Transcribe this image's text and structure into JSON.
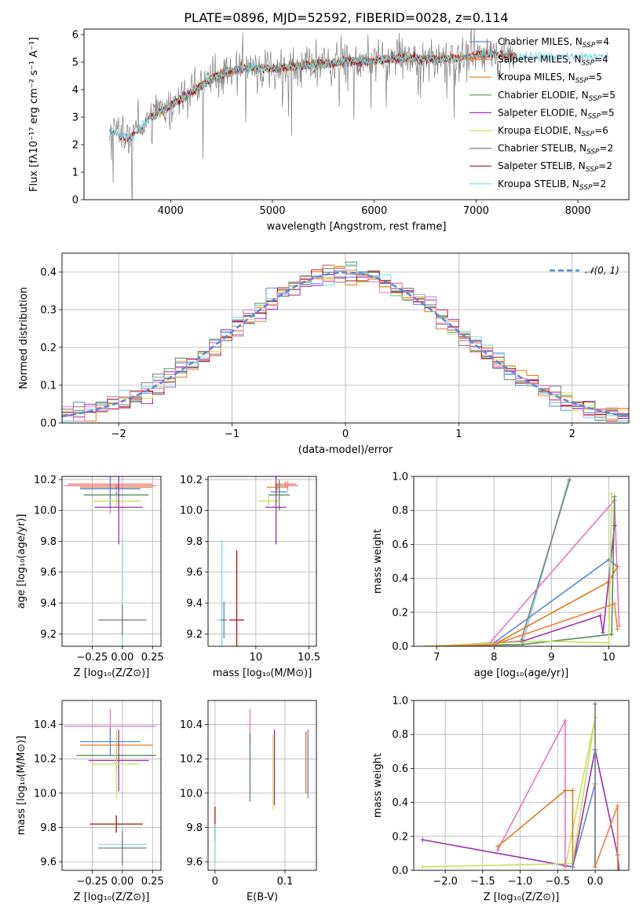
{
  "title": "PLATE=0896, MJD=52592, FIBERID=0028, z=0.114",
  "colors": {
    "Chabrier MILES": "#5b86d8",
    "Salpeter MILES": "#f07f3f",
    "Kroupa MILES": "#e07b1a",
    "Chabrier ELODIE": "#5a8a5a",
    "Salpeter ELODIE": "#9a2fb0",
    "Kroupa ELODIE": "#c8e05a",
    "Chabrier STELIB": "#7f7f7f",
    "Salpeter STELIB": "#b01010",
    "Kroupa STELIB": "#7fd6e0",
    "pink": "#e377c2",
    "normal": "#5b86d8"
  },
  "chart_data": [
    {
      "id": "spectrum",
      "type": "line",
      "xlabel": "wavelength [Angstrom, rest frame]",
      "ylabel": "Flux [fλ10⁻¹⁷ erg cm⁻² s⁻¹ A⁻¹]",
      "xlim": [
        3150,
        8500
      ],
      "ylim": [
        0,
        6.2
      ],
      "xticks": [
        4000,
        5000,
        6000,
        7000,
        8000
      ],
      "yticks": [
        0,
        1,
        2,
        3,
        4,
        5,
        6
      ],
      "legend_position": "top-right",
      "legend": [
        {
          "name": "Chabrier MILES, N",
          "sub": "SSP",
          "tail": "=4"
        },
        {
          "name": "Salpeter MILES, N",
          "sub": "SSP",
          "tail": "=4"
        },
        {
          "name": "Kroupa MILES, N",
          "sub": "SSP",
          "tail": "=5"
        },
        {
          "name": "Chabrier ELODIE, N",
          "sub": "SSP",
          "tail": "=5"
        },
        {
          "name": "Salpeter ELODIE, N",
          "sub": "SSP",
          "tail": "=5"
        },
        {
          "name": "Kroupa ELODIE, N",
          "sub": "SSP",
          "tail": "=6"
        },
        {
          "name": "Chabrier STELIB, N",
          "sub": "SSP",
          "tail": "=2"
        },
        {
          "name": "Salpeter STELIB, N",
          "sub": "SSP",
          "tail": "=2"
        },
        {
          "name": "Kroupa STELIB, N",
          "sub": "SSP",
          "tail": "=2"
        }
      ],
      "continuum": {
        "x": [
          3400,
          3600,
          3800,
          4000,
          4200,
          4400,
          4600,
          4800,
          5000,
          5200,
          5400,
          5600,
          5800,
          6000,
          6200,
          6400,
          6600,
          6800,
          7000,
          7200,
          7400
        ],
        "y": [
          2.5,
          2.2,
          3.0,
          3.4,
          3.9,
          4.4,
          4.7,
          4.8,
          4.75,
          4.85,
          4.9,
          4.95,
          5.05,
          5.05,
          5.15,
          5.15,
          5.1,
          5.15,
          5.25,
          5.3,
          5.2
        ]
      },
      "models": [
        {
          "name": "Chabrier MILES",
          "x": [
            3800,
            7200
          ],
          "y": [
            3.0,
            5.3
          ]
        },
        {
          "name": "Salpeter MILES",
          "x": [
            3800,
            7400
          ],
          "y": [
            3.0,
            5.2
          ]
        },
        {
          "name": "Kroupa MILES",
          "x": [
            3800,
            7400
          ],
          "y": [
            3.0,
            5.2
          ]
        },
        {
          "name": "Chabrier ELODIE",
          "x": [
            3800,
            6800
          ],
          "y": [
            3.0,
            5.15
          ]
        },
        {
          "name": "Salpeter ELODIE",
          "x": [
            3800,
            6800
          ],
          "y": [
            3.0,
            5.15
          ]
        },
        {
          "name": "Kroupa ELODIE",
          "x": [
            3800,
            6800
          ],
          "y": [
            3.0,
            5.15
          ]
        },
        {
          "name": "Chabrier STELIB",
          "x": [
            3400,
            7400
          ],
          "y": [
            2.5,
            5.2
          ]
        },
        {
          "name": "Salpeter STELIB",
          "x": [
            3400,
            7400
          ],
          "y": [
            2.5,
            5.2
          ]
        },
        {
          "name": "Kroupa STELIB",
          "x": [
            3400,
            8300
          ],
          "y": [
            2.5,
            5.1
          ]
        }
      ]
    },
    {
      "id": "residuals",
      "type": "line",
      "xlabel": "(data-model)/error",
      "ylabel": "Normed distribution",
      "xlim": [
        -2.5,
        2.5
      ],
      "ylim": [
        0,
        0.45
      ],
      "xticks": [
        -2,
        -1,
        0,
        1,
        2
      ],
      "yticks": [
        0.0,
        0.1,
        0.2,
        0.3,
        0.4
      ],
      "legend_label": "𝒩(0, 1)",
      "legend_position": "top-right",
      "bin_width": 0.1,
      "curve": "normal(0,1)"
    },
    {
      "id": "age_vs_Z",
      "type": "scatter",
      "xlabel": "Z [log₁₀(Z/Z⊙)]",
      "ylabel": "age  [log₁₀(age/yr)]",
      "xlim": [
        -0.5,
        0.32
      ],
      "ylim": [
        9.12,
        10.22
      ],
      "xticks": [
        -0.25,
        0.0,
        0.25
      ],
      "xticklabels": [
        "−0.25",
        "0.00",
        "0.25"
      ],
      "yticks": [
        9.2,
        9.4,
        9.6,
        9.8,
        10.0,
        10.2
      ],
      "points": [
        {
          "series": "Salpeter MILES",
          "x": -0.1,
          "y": 10.17,
          "xerr": 0.35,
          "yerr": 0.02
        },
        {
          "series": "pink",
          "x": -0.1,
          "y": 10.16,
          "xerr": 0.38,
          "yerr": 0.18
        },
        {
          "series": "Kroupa MILES",
          "x": -0.05,
          "y": 10.15,
          "xerr": 0.3,
          "yerr": 0.02
        },
        {
          "series": "Chabrier MILES",
          "x": -0.1,
          "y": 10.14,
          "xerr": 0.25,
          "yerr": 0.12
        },
        {
          "series": "Chabrier ELODIE",
          "x": -0.05,
          "y": 10.1,
          "xerr": 0.27,
          "yerr": 0.02
        },
        {
          "series": "Kroupa ELODIE",
          "x": -0.05,
          "y": 10.06,
          "xerr": 0.2,
          "yerr": 0.04
        },
        {
          "series": "Salpeter ELODIE",
          "x": -0.03,
          "y": 10.02,
          "xerr": 0.2,
          "yerr": 0.24
        },
        {
          "series": "Kroupa STELIB",
          "x": 0.0,
          "y": 9.29,
          "xerr": 0.2,
          "yerr": 0.52
        },
        {
          "series": "Chabrier STELIB",
          "x": 0.0,
          "y": 9.29,
          "xerr": 0.2,
          "yerr": 0.1
        }
      ]
    },
    {
      "id": "age_vs_mass",
      "type": "scatter",
      "xlabel": "mass [log₁₀(M/M⊙)]",
      "xlim": [
        9.55,
        10.57
      ],
      "ylim": [
        9.12,
        10.22
      ],
      "xticks": [
        10.0,
        10.5
      ],
      "yticks": [
        9.2,
        9.4,
        9.6,
        9.8,
        10.0,
        10.2
      ],
      "points": [
        {
          "series": "Salpeter MILES",
          "x": 10.28,
          "y": 10.17,
          "xerr": 0.1,
          "yerr": 0.02
        },
        {
          "series": "pink",
          "x": 10.3,
          "y": 10.16,
          "xerr": 0.1,
          "yerr": 0.03
        },
        {
          "series": "Kroupa MILES",
          "x": 10.2,
          "y": 10.15,
          "xerr": 0.1,
          "yerr": 0.02
        },
        {
          "series": "Chabrier MILES",
          "x": 10.22,
          "y": 10.12,
          "xerr": 0.08,
          "yerr": 0.03
        },
        {
          "series": "Chabrier ELODIE",
          "x": 10.22,
          "y": 10.1,
          "xerr": 0.1,
          "yerr": 0.1
        },
        {
          "series": "Kroupa ELODIE",
          "x": 10.12,
          "y": 10.06,
          "xerr": 0.1,
          "yerr": 0.04
        },
        {
          "series": "Salpeter ELODIE",
          "x": 10.19,
          "y": 10.02,
          "xerr": 0.1,
          "yerr": 0.24
        },
        {
          "series": "Salpeter STELIB",
          "x": 9.82,
          "y": 9.29,
          "xerr": 0.07,
          "yerr": 0.45
        },
        {
          "series": "Kroupa STELIB",
          "x": 9.68,
          "y": 9.29,
          "xerr": 0.05,
          "yerr": 0.52
        },
        {
          "series": "Chabrier STELIB",
          "x": 9.7,
          "y": 9.29,
          "xerr": 0.03,
          "yerr": 0.12
        }
      ]
    },
    {
      "id": "weight_vs_age",
      "type": "line",
      "xlabel": "age  [log₁₀(age/yr)]",
      "ylabel": "mass weight",
      "xlim": [
        6.6,
        10.35
      ],
      "ylim": [
        0,
        1.0
      ],
      "xticks": [
        7,
        8,
        9,
        10
      ],
      "yticks": [
        0.0,
        0.2,
        0.4,
        0.6,
        0.8,
        1.0
      ],
      "series": [
        {
          "name": "Kroupa STELIB",
          "x": [
            8.5,
            9.3
          ],
          "y": [
            0.02,
            0.98
          ]
        },
        {
          "name": "Chabrier STELIB",
          "x": [
            8.47,
            9.32
          ],
          "y": [
            0.03,
            0.98
          ]
        },
        {
          "name": "Chabrier MILES",
          "x": [
            7.0,
            8.0,
            10.0,
            10.15
          ],
          "y": [
            0.0,
            0.02,
            0.51,
            0.47
          ]
        },
        {
          "name": "pink",
          "x": [
            7.9,
            10.1,
            10.18
          ],
          "y": [
            0.01,
            0.86,
            0.12
          ]
        },
        {
          "name": "Kroupa MILES",
          "x": [
            7.0,
            8.0,
            10.0,
            10.15
          ],
          "y": [
            0.0,
            0.01,
            0.38,
            0.47
          ]
        },
        {
          "name": "Salpeter ELODIE",
          "x": [
            7.0,
            8.5,
            9.85,
            9.9,
            10.1
          ],
          "y": [
            0.0,
            0.03,
            0.18,
            0.08,
            0.71
          ]
        },
        {
          "name": "Chabrier ELODIE",
          "x": [
            7.0,
            8.5,
            10.05,
            10.1
          ],
          "y": [
            0.0,
            0.01,
            0.07,
            0.88
          ]
        },
        {
          "name": "Kroupa ELODIE",
          "x": [
            6.8,
            8.8,
            10.0,
            10.05
          ],
          "y": [
            0.0,
            0.03,
            0.02,
            0.9
          ]
        },
        {
          "name": "Salpeter MILES",
          "x": [
            7.0,
            8.0,
            10.1,
            10.15
          ],
          "y": [
            0.0,
            0.01,
            0.25,
            0.1
          ]
        }
      ]
    },
    {
      "id": "mass_vs_Z",
      "type": "scatter",
      "xlabel": "Z [log₁₀(Z/Z⊙)]",
      "ylabel": "mass [log₁₀(M/M⊙)]",
      "xlim": [
        -0.5,
        0.32
      ],
      "ylim": [
        9.55,
        10.54
      ],
      "xticks": [
        -0.25,
        0.0,
        0.25
      ],
      "xticklabels": [
        "−0.25",
        "0.00",
        "0.25"
      ],
      "yticks": [
        9.6,
        9.8,
        10.0,
        10.2,
        10.4
      ],
      "points": [
        {
          "series": "pink",
          "x": -0.1,
          "y": 10.39,
          "xerr": 0.38,
          "yerr": 0.1
        },
        {
          "series": "Chabrier MILES",
          "x": -0.1,
          "y": 10.3,
          "xerr": 0.25,
          "yerr": 0.08
        },
        {
          "series": "Kroupa MILES",
          "x": -0.05,
          "y": 10.28,
          "xerr": 0.3,
          "yerr": 0.08
        },
        {
          "series": "Chabrier ELODIE",
          "x": -0.05,
          "y": 10.22,
          "xerr": 0.33,
          "yerr": 0.1
        },
        {
          "series": "Salpeter ELODIE",
          "x": -0.03,
          "y": 10.19,
          "xerr": 0.25,
          "yerr": 0.18
        },
        {
          "series": "Kroupa ELODIE",
          "x": -0.05,
          "y": 10.17,
          "xerr": 0.2,
          "yerr": 0.2
        },
        {
          "series": "Salpeter STELIB",
          "x": -0.05,
          "y": 9.82,
          "xerr": 0.22,
          "yerr": 0.05
        },
        {
          "series": "Kroupa STELIB",
          "x": 0.0,
          "y": 9.7,
          "xerr": 0.2,
          "yerr": 0.1
        },
        {
          "series": "Chabrier STELIB",
          "x": 0.0,
          "y": 9.68,
          "xerr": 0.2,
          "yerr": 0.1
        }
      ]
    },
    {
      "id": "mass_vs_ebv",
      "type": "scatter",
      "xlabel": "E(B-V)",
      "xlim": [
        -0.01,
        0.145
      ],
      "ylim": [
        9.55,
        10.54
      ],
      "xticks": [
        0.0,
        0.1
      ],
      "yticks": [
        9.6,
        9.8,
        10.0,
        10.2,
        10.4
      ],
      "points": [
        {
          "series": "Salpeter STELIB",
          "x": 0.0,
          "y": 9.82,
          "yerr": 0.1
        },
        {
          "series": "Kroupa STELIB",
          "x": 0.0,
          "y": 9.7,
          "yerr": 0.12
        },
        {
          "series": "pink",
          "x": 0.05,
          "y": 10.39,
          "yerr": 0.1
        },
        {
          "series": "Chabrier ELODIE",
          "x": 0.05,
          "y": 10.15,
          "yerr": 0.2
        },
        {
          "series": "Salpeter ELODIE",
          "x": 0.085,
          "y": 10.15,
          "yerr": 0.22
        },
        {
          "series": "Kroupa ELODIE",
          "x": 0.083,
          "y": 10.12,
          "yerr": 0.22
        },
        {
          "series": "Kroupa MILES",
          "x": 0.13,
          "y": 10.18,
          "yerr": 0.18
        },
        {
          "series": "Chabrier MILES",
          "x": 0.133,
          "y": 10.17,
          "yerr": 0.2
        }
      ]
    },
    {
      "id": "weight_vs_Z",
      "type": "line",
      "xlabel": "Z [log₁₀(Z/Z⊙)]",
      "ylabel": "mass weight",
      "xlim": [
        -2.42,
        0.45
      ],
      "ylim": [
        0,
        1.0
      ],
      "xticks": [
        -2.0,
        -1.5,
        -1.0,
        -0.5,
        0.0
      ],
      "xticklabels": [
        "−2.0",
        "−1.5",
        "−1.0",
        "−0.5",
        "0.0"
      ],
      "yticks": [
        0.0,
        0.2,
        0.4,
        0.6,
        0.8,
        1.0
      ],
      "series": [
        {
          "name": "Salpeter ELODIE",
          "x": [
            -2.3,
            -0.3,
            0.0,
            0.3,
            0.32
          ],
          "y": [
            0.18,
            0.02,
            0.71,
            0.09,
            0.0
          ]
        },
        {
          "name": "Kroupa ELODIE",
          "x": [
            -2.3,
            -0.3,
            0.0,
            -0.4
          ],
          "y": [
            0.02,
            0.04,
            0.9,
            0.02
          ]
        },
        {
          "name": "pink",
          "x": [
            -1.3,
            -0.4,
            -0.4
          ],
          "y": [
            0.12,
            0.88,
            0.02
          ]
        },
        {
          "name": "Kroupa MILES",
          "x": [
            -1.3,
            -0.4,
            -0.3,
            -0.3
          ],
          "y": [
            0.14,
            0.47,
            0.47,
            0.02
          ]
        },
        {
          "name": "Chabrier MILES",
          "x": [
            -0.3,
            0.0,
            0.0
          ],
          "y": [
            0.02,
            0.51,
            0.02
          ]
        },
        {
          "name": "Kroupa STELIB",
          "x": [
            0.0,
            0.0
          ],
          "y": [
            0.02,
            0.98
          ]
        },
        {
          "name": "Chabrier STELIB",
          "x": [
            0.0,
            0.0
          ],
          "y": [
            0.02,
            0.98
          ]
        },
        {
          "name": "Salpeter MILES",
          "x": [
            0.0,
            0.3,
            0.3
          ],
          "y": [
            0.02,
            0.38,
            0.0
          ]
        }
      ]
    }
  ]
}
